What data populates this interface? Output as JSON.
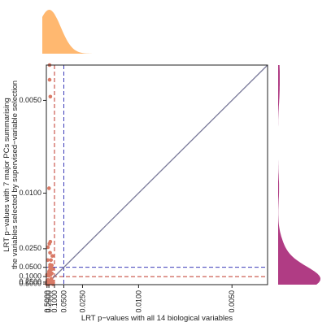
{
  "chart_data": {
    "type": "scatter",
    "title": "",
    "xlabel": "LRT p−values with all 14 biological variables",
    "ylabel_lines": [
      "LRT p−values with 7 major PCs summarising",
      "the variables selected by supervised−variable selection"
    ],
    "x_scale": "reciprocal",
    "y_scale": "reciprocal",
    "xlim": [
      0.77,
      0.0042
    ],
    "ylim": [
      0.77,
      0.0042
    ],
    "x_ticks": [
      {
        "value": 0.5,
        "label": "0.5000"
      },
      {
        "value": 0.25,
        "label": "0.2500"
      },
      {
        "value": 0.1,
        "label": "0.1000"
      },
      {
        "value": 0.05,
        "label": "0.0500"
      },
      {
        "value": 0.025,
        "label": "0.0250"
      },
      {
        "value": 0.01,
        "label": "0.0100"
      },
      {
        "value": 0.005,
        "label": "0.0050"
      }
    ],
    "y_ticks": [
      {
        "value": 0.5,
        "label": "0.5000"
      },
      {
        "value": 0.25,
        "label": "0.2500"
      },
      {
        "value": 0.1,
        "label": "0.1000"
      },
      {
        "value": 0.05,
        "label": "0.0500"
      },
      {
        "value": 0.025,
        "label": "0.0250"
      },
      {
        "value": 0.01,
        "label": "0.0100"
      },
      {
        "value": 0.005,
        "label": "0.0050"
      }
    ],
    "reference_lines": [
      {
        "axis": "x",
        "value": 0.1,
        "color": "#c0392b",
        "style": "dashed"
      },
      {
        "axis": "y",
        "value": 0.1,
        "color": "#c0392b",
        "style": "dashed"
      },
      {
        "axis": "x",
        "value": 0.05,
        "color": "#3b3bb8",
        "style": "dashed"
      },
      {
        "axis": "y",
        "value": 0.05,
        "color": "#3b3bb8",
        "style": "dashed"
      },
      {
        "axis": "diagonal",
        "color": "#7a7a9a",
        "style": "solid"
      }
    ],
    "point_color": "#d97a66",
    "top_density_color": "#ffb870",
    "right_density_color": "#b03c84",
    "points": [
      {
        "x": 0.6,
        "y": 0.45
      },
      {
        "x": 0.56,
        "y": 0.58
      },
      {
        "x": 0.52,
        "y": 0.38
      },
      {
        "x": 0.5,
        "y": 0.33
      },
      {
        "x": 0.48,
        "y": 0.32
      },
      {
        "x": 0.46,
        "y": 0.29
      },
      {
        "x": 0.45,
        "y": 0.24
      },
      {
        "x": 0.47,
        "y": 0.21
      },
      {
        "x": 0.44,
        "y": 0.17
      },
      {
        "x": 0.49,
        "y": 0.083
      },
      {
        "x": 0.41,
        "y": 0.32
      },
      {
        "x": 0.39,
        "y": 0.28
      },
      {
        "x": 0.4,
        "y": 0.54
      },
      {
        "x": 0.36,
        "y": 0.31
      },
      {
        "x": 0.35,
        "y": 0.24
      },
      {
        "x": 0.33,
        "y": 0.22
      },
      {
        "x": 0.31,
        "y": 0.29
      },
      {
        "x": 0.34,
        "y": 0.19
      },
      {
        "x": 0.32,
        "y": 0.16
      },
      {
        "x": 0.38,
        "y": 0.09
      },
      {
        "x": 0.36,
        "y": 0.036
      },
      {
        "x": 0.34,
        "y": 0.024
      },
      {
        "x": 0.3,
        "y": 0.35
      },
      {
        "x": 0.28,
        "y": 0.4
      },
      {
        "x": 0.27,
        "y": 0.27
      },
      {
        "x": 0.26,
        "y": 0.62
      },
      {
        "x": 0.29,
        "y": 0.087
      },
      {
        "x": 0.29,
        "y": 0.08
      },
      {
        "x": 0.26,
        "y": 0.092
      },
      {
        "x": 0.25,
        "y": 0.23
      },
      {
        "x": 0.24,
        "y": 0.2
      },
      {
        "x": 0.23,
        "y": 0.26
      },
      {
        "x": 0.22,
        "y": 0.022
      },
      {
        "x": 0.24,
        "y": 0.065
      },
      {
        "x": 0.22,
        "y": 0.062
      },
      {
        "x": 0.23,
        "y": 0.082
      },
      {
        "x": 0.21,
        "y": 0.077
      },
      {
        "x": 0.2,
        "y": 0.05
      },
      {
        "x": 0.19,
        "y": 0.044
      },
      {
        "x": 0.19,
        "y": 0.028
      },
      {
        "x": 0.18,
        "y": 0.021
      },
      {
        "x": 0.17,
        "y": 0.058
      },
      {
        "x": 0.17,
        "y": 0.083
      },
      {
        "x": 0.17,
        "y": 0.32
      },
      {
        "x": 0.16,
        "y": 0.18
      },
      {
        "x": 0.155,
        "y": 0.14
      },
      {
        "x": 0.15,
        "y": 0.13
      },
      {
        "x": 0.16,
        "y": 0.036
      },
      {
        "x": 0.15,
        "y": 0.052
      },
      {
        "x": 0.14,
        "y": 0.045
      },
      {
        "x": 0.14,
        "y": 0.074
      },
      {
        "x": 0.13,
        "y": 0.055
      },
      {
        "x": 0.13,
        "y": 0.031
      },
      {
        "x": 0.13,
        "y": 0.26
      },
      {
        "x": 0.12,
        "y": 0.22
      },
      {
        "x": 0.12,
        "y": 0.59
      },
      {
        "x": 0.13,
        "y": 0.2
      },
      {
        "x": 0.24,
        "y": 0.0095
      },
      {
        "x": 0.21,
        "y": 0.0045
      },
      {
        "x": 0.21,
        "y": 0.0042
      },
      {
        "x": 0.18,
        "y": 0.0049
      }
    ]
  }
}
